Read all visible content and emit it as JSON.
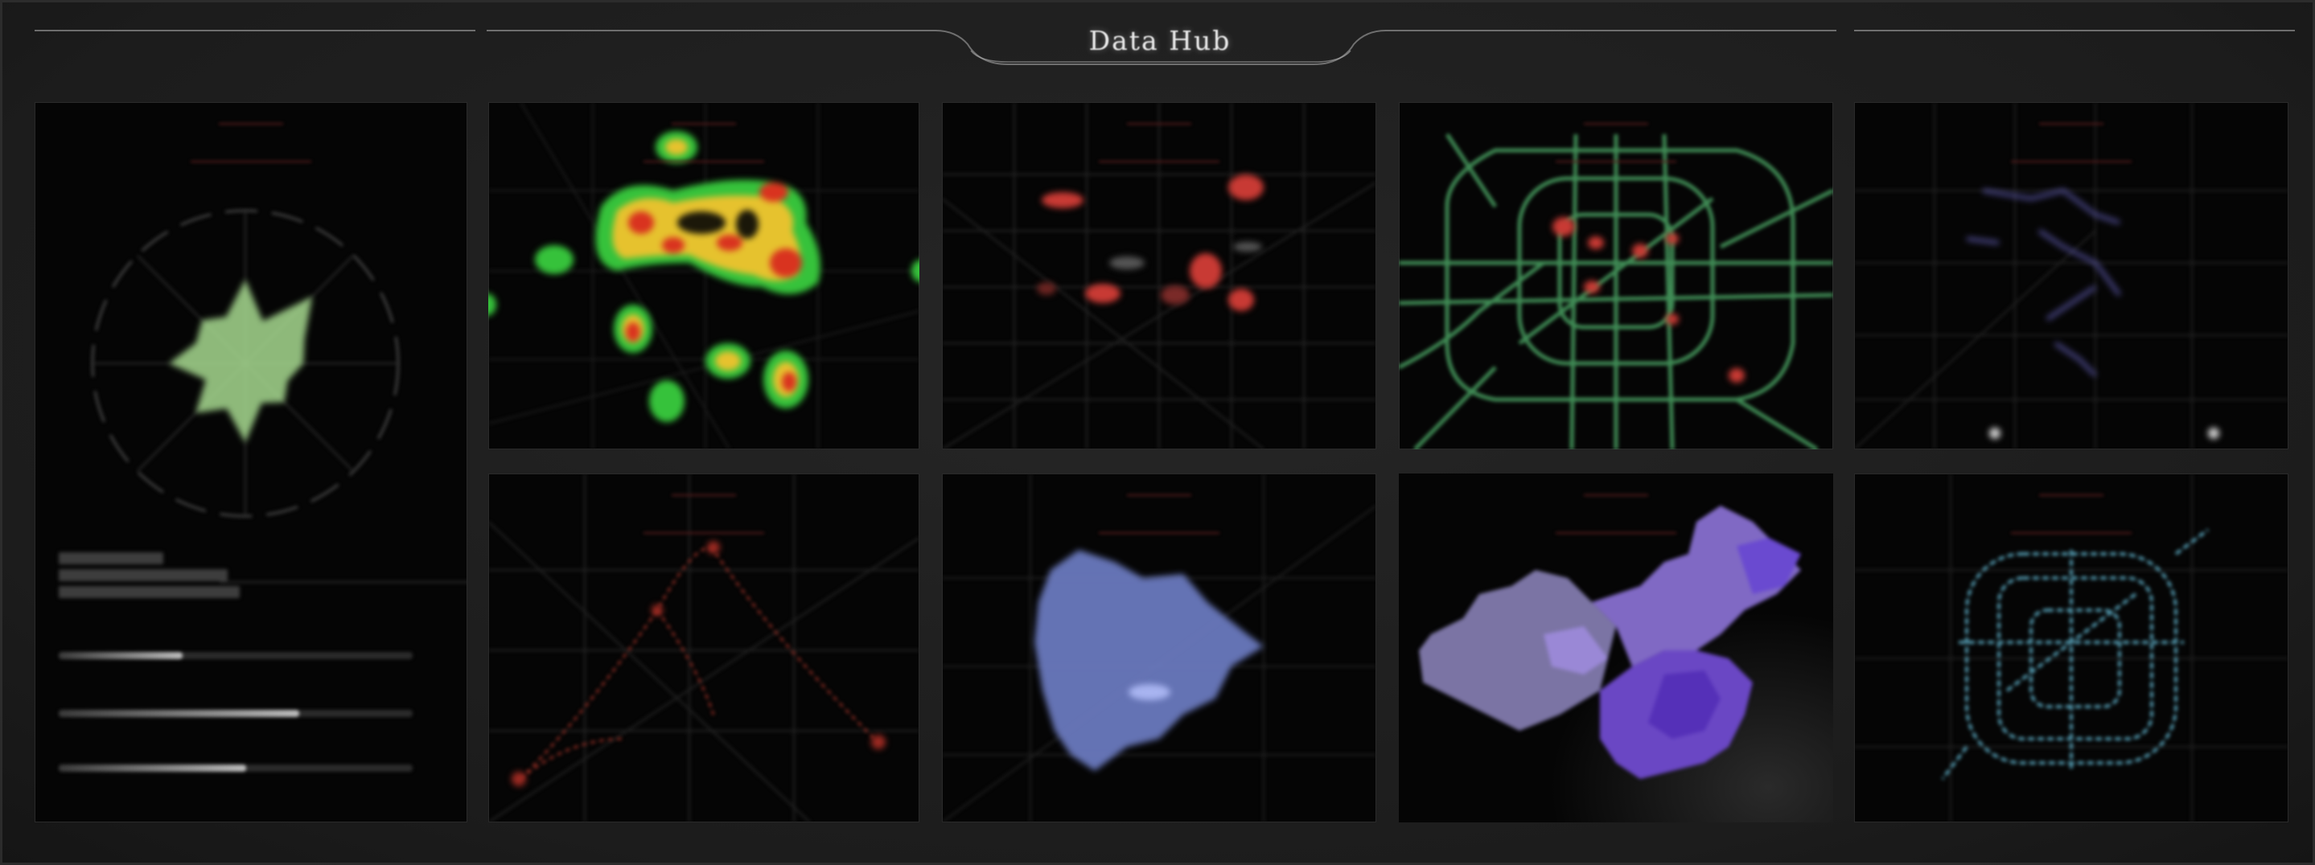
{
  "header": {
    "title": "Data Hub"
  },
  "colors": {
    "background": "#1f1f1f",
    "panel": "#050505",
    "frame_line": "#8a8a8a",
    "title_accent": "#5a1d1d",
    "radar_green": "#a6d98f",
    "heat_red": "#d9331f",
    "heat_yellow": "#e6c22e",
    "heat_green": "#36c23b",
    "hotspot_red": "#c83a34",
    "metro_green": "#4fae6a",
    "trajectory_purple": "#5b58a8",
    "commute_red": "#8c2b22",
    "density_blue": "#6f7fc7",
    "province_purple": "#6a47c4",
    "transit_cyan": "#5fb0c9"
  },
  "panels": [
    {
      "id": "panel-1",
      "title": "",
      "kind": "radar"
    },
    {
      "id": "panel-2",
      "title": "",
      "kind": "heatmap"
    },
    {
      "id": "panel-3",
      "title": "",
      "kind": "hotspots"
    },
    {
      "id": "panel-4",
      "title": "",
      "kind": "metro-network"
    },
    {
      "id": "panel-5",
      "title": "",
      "kind": "trajectories"
    },
    {
      "id": "panel-6",
      "title": "",
      "kind": "commute-pattern"
    },
    {
      "id": "panel-7",
      "title": "",
      "kind": "density-map"
    },
    {
      "id": "panel-8",
      "title": "",
      "kind": "china-choropleth"
    },
    {
      "id": "panel-9",
      "title": "",
      "kind": "transit-network"
    }
  ],
  "radar": {
    "values": [
      0.55,
      0.3,
      0.62,
      0.42,
      0.38,
      0.3,
      0.36,
      0.28,
      0.52,
      0.32,
      0.46,
      0.28,
      0.5,
      0.35,
      0.4,
      0.33
    ]
  },
  "stats": {
    "metrics": [
      {
        "label": "",
        "value": "",
        "level": 0.35
      },
      {
        "label": "",
        "value": "",
        "level": 0.68
      },
      {
        "label": "",
        "value": "",
        "level": 0.53
      }
    ]
  }
}
